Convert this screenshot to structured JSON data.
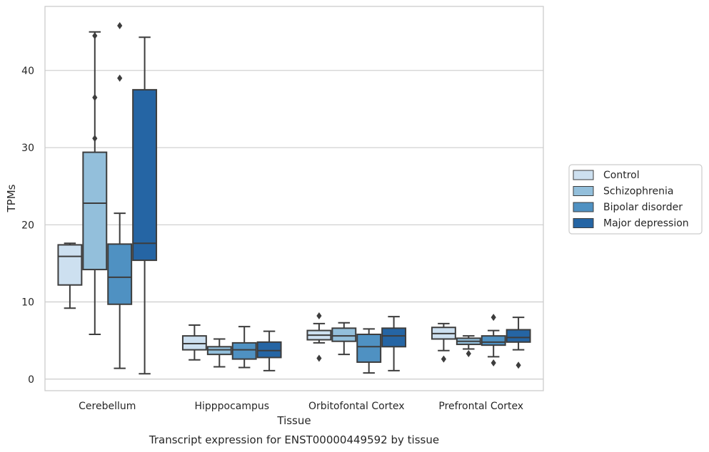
{
  "chart_data": {
    "type": "boxplot",
    "xlabel": "Tissue",
    "ylabel": "TPMs",
    "caption": "Transcript expression for ENST00000449592 by tissue",
    "ylim": [
      -1.5,
      48.3
    ],
    "yticks": [
      0,
      10,
      20,
      30,
      40
    ],
    "grid": "horizontal",
    "legend_placement": "right",
    "categories": [
      "Cerebellum",
      "Hipppocampus",
      "Orbitofontal Cortex",
      "Prefrontal Cortex"
    ],
    "series": [
      {
        "name": "Control",
        "color": "#cde0f0",
        "boxes": [
          {
            "whisker_low": 9.2,
            "q1": 12.2,
            "median": 15.9,
            "q3": 17.4,
            "whisker_high": 17.6,
            "outliers": []
          },
          {
            "whisker_low": 2.5,
            "q1": 3.8,
            "median": 4.6,
            "q3": 5.6,
            "whisker_high": 7.0,
            "outliers": []
          },
          {
            "whisker_low": 4.7,
            "q1": 5.1,
            "median": 5.7,
            "q3": 6.3,
            "whisker_high": 7.2,
            "outliers": [
              8.2,
              2.7
            ]
          },
          {
            "whisker_low": 3.7,
            "q1": 5.2,
            "median": 5.9,
            "q3": 6.7,
            "whisker_high": 7.2,
            "outliers": [
              2.6
            ]
          }
        ]
      },
      {
        "name": "Schizophrenia",
        "color": "#93bfdb",
        "boxes": [
          {
            "whisker_low": 5.8,
            "q1": 14.2,
            "median": 22.8,
            "q3": 29.4,
            "whisker_high": 45.0,
            "outliers": [
              44.5,
              36.5,
              31.2
            ]
          },
          {
            "whisker_low": 1.6,
            "q1": 3.2,
            "median": 3.8,
            "q3": 4.2,
            "whisker_high": 5.2,
            "outliers": []
          },
          {
            "whisker_low": 3.2,
            "q1": 4.9,
            "median": 5.6,
            "q3": 6.6,
            "whisker_high": 7.3,
            "outliers": []
          },
          {
            "whisker_low": 3.9,
            "q1": 4.5,
            "median": 4.9,
            "q3": 5.3,
            "whisker_high": 5.6,
            "outliers": [
              3.3
            ]
          }
        ]
      },
      {
        "name": "Bipolar disorder",
        "color": "#4f91c2",
        "boxes": [
          {
            "whisker_low": 1.4,
            "q1": 9.7,
            "median": 13.2,
            "q3": 17.5,
            "whisker_high": 21.5,
            "outliers": [
              45.8,
              39.0
            ]
          },
          {
            "whisker_low": 1.5,
            "q1": 2.6,
            "median": 3.8,
            "q3": 4.7,
            "whisker_high": 6.8,
            "outliers": []
          },
          {
            "whisker_low": 0.8,
            "q1": 2.2,
            "median": 4.2,
            "q3": 5.8,
            "whisker_high": 6.5,
            "outliers": []
          },
          {
            "whisker_low": 2.9,
            "q1": 4.4,
            "median": 4.8,
            "q3": 5.6,
            "whisker_high": 6.3,
            "outliers": [
              8.0,
              2.1
            ]
          }
        ]
      },
      {
        "name": "Major depression",
        "color": "#2565a4",
        "boxes": [
          {
            "whisker_low": 0.7,
            "q1": 15.4,
            "median": 17.6,
            "q3": 37.5,
            "whisker_high": 44.3,
            "outliers": []
          },
          {
            "whisker_low": 1.1,
            "q1": 2.8,
            "median": 3.7,
            "q3": 4.8,
            "whisker_high": 6.2,
            "outliers": []
          },
          {
            "whisker_low": 1.1,
            "q1": 4.2,
            "median": 5.6,
            "q3": 6.6,
            "whisker_high": 8.1,
            "outliers": []
          },
          {
            "whisker_low": 3.8,
            "q1": 4.8,
            "median": 5.4,
            "q3": 6.4,
            "whisker_high": 8.0,
            "outliers": [
              1.8
            ]
          }
        ]
      }
    ]
  }
}
